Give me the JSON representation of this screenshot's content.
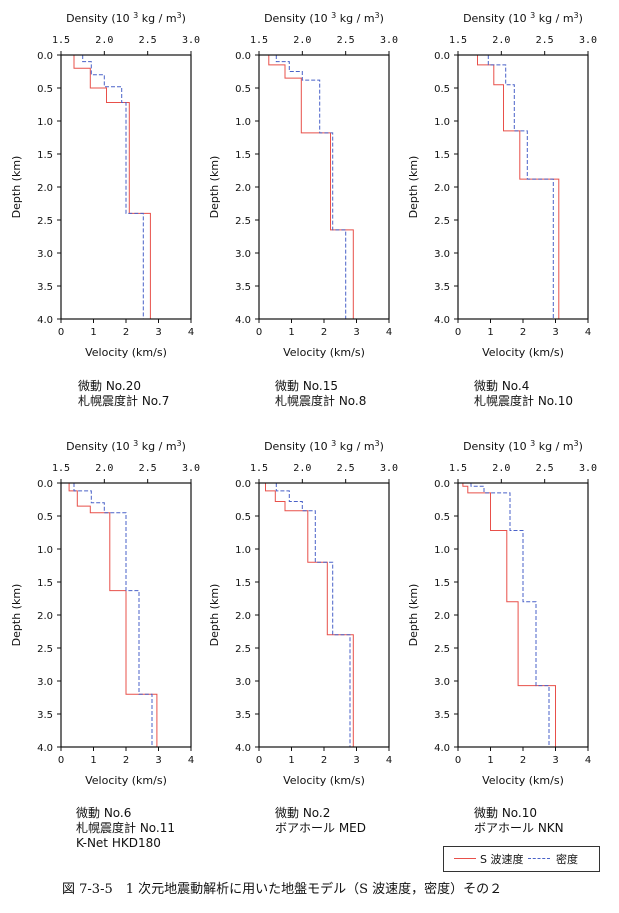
{
  "figure": {
    "caption": "図 7-3-5　1 次元地震動解析に用いた地盤モデル（S 波速度，密度）その２",
    "legend": {
      "vs_label": "S 波速度",
      "density_label": "密度"
    },
    "colors": {
      "vs": "#e8504a",
      "density": "#4a62c8"
    }
  },
  "chart_data": [
    {
      "type": "line",
      "panel": "p1",
      "title_top": "Density (10 3 kg / m3)",
      "xlabel": "Velocity (km/s)",
      "ylabel": "Depth (km)",
      "density_ticks": [
        "1.5",
        "2.0",
        "2.5",
        "3.0"
      ],
      "density_lim": [
        1.5,
        3.0
      ],
      "velocity_ticks": [
        "0",
        "1",
        "2",
        "3",
        "4"
      ],
      "velocity_lim": [
        0,
        4
      ],
      "depth_ticks": [
        "0.0",
        "0.5",
        "1.0",
        "1.5",
        "2.0",
        "2.5",
        "3.0",
        "3.5",
        "4.0"
      ],
      "depth_lim": [
        0,
        4
      ],
      "series": [
        {
          "name": "S 波速度",
          "axis": "velocity",
          "layers": [
            [
              0.0,
              0.4
            ],
            [
              0.2,
              0.9
            ],
            [
              0.5,
              1.4
            ],
            [
              0.72,
              2.1
            ],
            [
              2.4,
              2.75
            ],
            [
              4.0,
              2.75
            ]
          ]
        },
        {
          "name": "密度",
          "axis": "density",
          "layers": [
            [
              0.0,
              1.75
            ],
            [
              0.1,
              1.85
            ],
            [
              0.3,
              2.0
            ],
            [
              0.48,
              2.2
            ],
            [
              0.72,
              2.25
            ],
            [
              2.4,
              2.45
            ],
            [
              4.0,
              2.45
            ]
          ]
        }
      ],
      "captions": [
        "微動 No.20",
        "札幌震度計 No.7"
      ]
    },
    {
      "type": "line",
      "panel": "p2",
      "title_top": "Density (10 3 kg / m3)",
      "xlabel": "Velocity (km/s)",
      "ylabel": "Depth (km)",
      "density_ticks": [
        "1.5",
        "2.0",
        "2.5",
        "3.0"
      ],
      "density_lim": [
        1.5,
        3.0
      ],
      "velocity_ticks": [
        "0",
        "1",
        "2",
        "3",
        "4"
      ],
      "velocity_lim": [
        0,
        4
      ],
      "depth_ticks": [
        "0.0",
        "0.5",
        "1.0",
        "1.5",
        "2.0",
        "2.5",
        "3.0",
        "3.5",
        "4.0"
      ],
      "depth_lim": [
        0,
        4
      ],
      "series": [
        {
          "name": "S 波速度",
          "axis": "velocity",
          "layers": [
            [
              0.0,
              0.3
            ],
            [
              0.15,
              0.8
            ],
            [
              0.35,
              1.3
            ],
            [
              1.18,
              2.2
            ],
            [
              2.65,
              2.9
            ],
            [
              4.0,
              2.9
            ]
          ]
        },
        {
          "name": "密度",
          "axis": "density",
          "layers": [
            [
              0.0,
              1.7
            ],
            [
              0.1,
              1.85
            ],
            [
              0.25,
              2.0
            ],
            [
              0.38,
              2.2
            ],
            [
              1.18,
              2.35
            ],
            [
              2.65,
              2.5
            ],
            [
              4.0,
              2.5
            ]
          ]
        }
      ],
      "captions": [
        "微動 No.15",
        "札幌震度計 No.8"
      ]
    },
    {
      "type": "line",
      "panel": "p3",
      "title_top": "Density (10 3 kg / m3)",
      "xlabel": "Velocity (km/s)",
      "ylabel": "Depth (km)",
      "density_ticks": [
        "1.5",
        "2.0",
        "2.5",
        "3.0"
      ],
      "density_lim": [
        1.5,
        3.0
      ],
      "velocity_ticks": [
        "0",
        "1",
        "2",
        "3",
        "4"
      ],
      "velocity_lim": [
        0,
        4
      ],
      "depth_ticks": [
        "0.0",
        "0.5",
        "1.0",
        "1.5",
        "2.0",
        "2.5",
        "3.0",
        "3.5",
        "4.0"
      ],
      "depth_lim": [
        0,
        4
      ],
      "series": [
        {
          "name": "S 波速度",
          "axis": "velocity",
          "layers": [
            [
              0.0,
              0.6
            ],
            [
              0.15,
              1.1
            ],
            [
              0.45,
              1.4
            ],
            [
              1.15,
              1.9
            ],
            [
              1.88,
              3.1
            ],
            [
              4.0,
              3.1
            ]
          ]
        },
        {
          "name": "密度",
          "axis": "density",
          "layers": [
            [
              0.0,
              1.85
            ],
            [
              0.15,
              2.05
            ],
            [
              0.45,
              2.15
            ],
            [
              1.15,
              2.3
            ],
            [
              1.88,
              2.6
            ],
            [
              4.0,
              2.6
            ]
          ]
        }
      ],
      "captions": [
        "微動 No.4",
        "札幌震度計 No.10"
      ]
    },
    {
      "type": "line",
      "panel": "p4",
      "title_top": "Density (10 3 kg / m3)",
      "xlabel": "Velocity (km/s)",
      "ylabel": "Depth (km)",
      "density_ticks": [
        "1.5",
        "2.0",
        "2.5",
        "3.0"
      ],
      "density_lim": [
        1.5,
        3.0
      ],
      "velocity_ticks": [
        "0",
        "1",
        "2",
        "3",
        "4"
      ],
      "velocity_lim": [
        0,
        4
      ],
      "depth_ticks": [
        "0.0",
        "0.5",
        "1.0",
        "1.5",
        "2.0",
        "2.5",
        "3.0",
        "3.5",
        "4.0"
      ],
      "depth_lim": [
        0,
        4
      ],
      "series": [
        {
          "name": "S 波速度",
          "axis": "velocity",
          "layers": [
            [
              0.0,
              0.25
            ],
            [
              0.12,
              0.5
            ],
            [
              0.35,
              0.9
            ],
            [
              0.45,
              1.5
            ],
            [
              1.63,
              2.0
            ],
            [
              3.2,
              2.95
            ],
            [
              4.0,
              2.95
            ]
          ]
        },
        {
          "name": "密度",
          "axis": "density",
          "layers": [
            [
              0.0,
              1.65
            ],
            [
              0.12,
              1.85
            ],
            [
              0.3,
              2.0
            ],
            [
              0.45,
              2.25
            ],
            [
              1.63,
              2.4
            ],
            [
              3.2,
              2.55
            ],
            [
              4.0,
              2.55
            ]
          ]
        }
      ],
      "captions": [
        "微動 No.6",
        "札幌震度計 No.11",
        "K-Net HKD180"
      ]
    },
    {
      "type": "line",
      "panel": "p5",
      "title_top": "Density (10 3 kg / m3)",
      "xlabel": "Velocity (km/s)",
      "ylabel": "Depth (km)",
      "density_ticks": [
        "1.5",
        "2.0",
        "2.5",
        "3.0"
      ],
      "density_lim": [
        1.5,
        3.0
      ],
      "velocity_ticks": [
        "0",
        "1",
        "2",
        "3",
        "4"
      ],
      "velocity_lim": [
        0,
        4
      ],
      "depth_ticks": [
        "0.0",
        "0.5",
        "1.0",
        "1.5",
        "2.0",
        "2.5",
        "3.0",
        "3.5",
        "4.0"
      ],
      "depth_lim": [
        0,
        4
      ],
      "series": [
        {
          "name": "S 波速度",
          "axis": "velocity",
          "layers": [
            [
              0.0,
              0.2
            ],
            [
              0.12,
              0.5
            ],
            [
              0.28,
              0.8
            ],
            [
              0.42,
              1.5
            ],
            [
              1.2,
              2.1
            ],
            [
              2.3,
              2.9
            ],
            [
              4.0,
              2.9
            ]
          ]
        },
        {
          "name": "密度",
          "axis": "density",
          "layers": [
            [
              0.0,
              1.7
            ],
            [
              0.12,
              1.85
            ],
            [
              0.28,
              2.0
            ],
            [
              0.42,
              2.15
            ],
            [
              1.2,
              2.35
            ],
            [
              2.3,
              2.55
            ],
            [
              4.0,
              2.55
            ]
          ]
        }
      ],
      "captions": [
        "微動 No.2",
        "ボアホール MED"
      ]
    },
    {
      "type": "line",
      "panel": "p6",
      "title_top": "Density (10 3 kg / m3)",
      "xlabel": "Velocity (km/s)",
      "ylabel": "Depth (km)",
      "density_ticks": [
        "1.5",
        "2.0",
        "2.5",
        "3.0"
      ],
      "density_lim": [
        1.5,
        3.0
      ],
      "velocity_ticks": [
        "0",
        "1",
        "2",
        "3",
        "4"
      ],
      "velocity_lim": [
        0,
        4
      ],
      "depth_ticks": [
        "0.0",
        "0.5",
        "1.0",
        "1.5",
        "2.0",
        "2.5",
        "3.0",
        "3.5",
        "4.0"
      ],
      "depth_lim": [
        0,
        4
      ],
      "series": [
        {
          "name": "S 波速度",
          "axis": "velocity",
          "layers": [
            [
              0.0,
              0.15
            ],
            [
              0.05,
              0.3
            ],
            [
              0.15,
              1.0
            ],
            [
              0.72,
              1.5
            ],
            [
              1.8,
              1.85
            ],
            [
              3.07,
              3.0
            ],
            [
              4.0,
              3.0
            ]
          ]
        },
        {
          "name": "密度",
          "axis": "density",
          "layers": [
            [
              0.0,
              1.65
            ],
            [
              0.05,
              1.8
            ],
            [
              0.15,
              2.1
            ],
            [
              0.72,
              2.25
            ],
            [
              1.8,
              2.4
            ],
            [
              3.07,
              2.55
            ],
            [
              4.0,
              2.55
            ]
          ]
        }
      ],
      "captions": [
        "微動 No.10",
        "ボアホール NKN"
      ]
    }
  ]
}
